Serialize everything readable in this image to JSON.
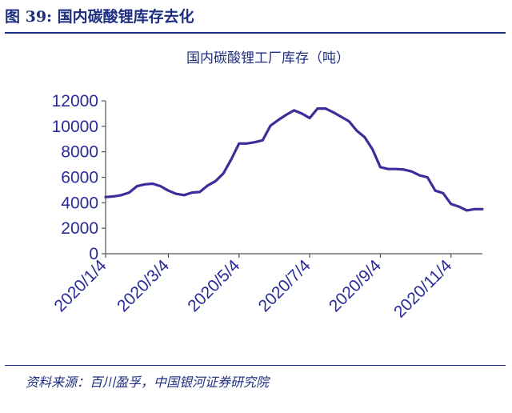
{
  "header": {
    "title": "图 39:  国内碳酸锂库存去化"
  },
  "footer": {
    "source": "资料来源：百川盈孚，中国银河证券研究院"
  },
  "chart_data": {
    "type": "line",
    "title": "国内碳酸锂工厂库存（吨）",
    "xlabel": "",
    "ylabel": "",
    "ylim": [
      0,
      12000
    ],
    "y_ticks": [
      0,
      2000,
      4000,
      6000,
      8000,
      10000,
      12000
    ],
    "x_tick_labels": [
      "2020/1/4",
      "2020/3/4",
      "2020/5/4",
      "2020/7/4",
      "2020/9/4",
      "2020/11/4"
    ],
    "x_tick_index": [
      0,
      8,
      17,
      26,
      35,
      44
    ],
    "grid": false,
    "legend": "none",
    "line_color": "#3a2e9b",
    "series": [
      {
        "values": [
          4450,
          4500,
          4600,
          4800,
          5300,
          5450,
          5500,
          5300,
          4950,
          4700,
          4600,
          4800,
          4850,
          5350,
          5700,
          6300,
          7400,
          8650,
          8650,
          8750,
          8900,
          10050,
          10500,
          10900,
          11250,
          11000,
          10650,
          11400,
          11400,
          11100,
          10750,
          10400,
          9650,
          9150,
          8200,
          6800,
          6650,
          6650,
          6600,
          6450,
          6150,
          6000,
          4950,
          4750,
          3900,
          3700,
          3400,
          3500,
          3500
        ]
      }
    ]
  }
}
